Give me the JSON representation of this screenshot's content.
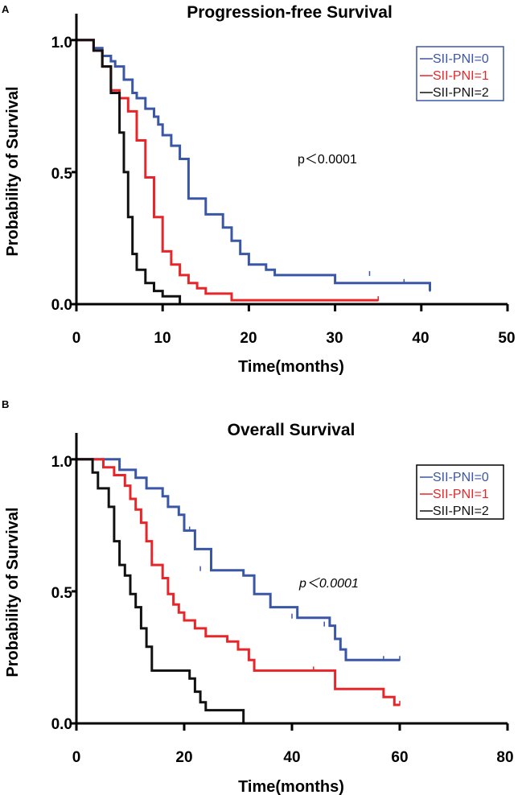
{
  "colors": {
    "group0": "#3a56a6",
    "group1": "#e8262a",
    "group2": "#111111",
    "axis": "#000000"
  },
  "chart_data": [
    {
      "type": "line",
      "panel": "A",
      "title": "Progression-free Survival",
      "xlabel": "Time(months)",
      "ylabel": "Probability of Survival",
      "xlim": [
        0,
        50
      ],
      "ylim": [
        0,
        1.1
      ],
      "x_ticks": [
        0,
        10,
        20,
        30,
        40,
        50
      ],
      "y_ticks": [
        0.0,
        0.5,
        1.0
      ],
      "x_tick_labels": [
        "0",
        "10",
        "20",
        "30",
        "40",
        "50"
      ],
      "y_tick_labels": [
        "0.0",
        "0.5",
        "1.0"
      ],
      "annotation": "p＜0.0001",
      "legend": [
        "SII-PNI=0",
        "SII-PNI=1",
        "SII-PNI=2"
      ],
      "series": [
        {
          "name": "SII-PNI=0",
          "color_key": "group0",
          "x": [
            0,
            2,
            3,
            4,
            4.5,
            5.5,
            6.5,
            7,
            8,
            9,
            9.5,
            10,
            11,
            12,
            13,
            15,
            17,
            18,
            19,
            20,
            22,
            23,
            30,
            41
          ],
          "y": [
            1.0,
            0.97,
            0.94,
            0.92,
            0.9,
            0.85,
            0.8,
            0.78,
            0.74,
            0.71,
            0.68,
            0.64,
            0.6,
            0.55,
            0.4,
            0.34,
            0.29,
            0.24,
            0.19,
            0.15,
            0.13,
            0.11,
            0.08,
            0.05
          ],
          "censored": [
            [
              23,
              0.11
            ],
            [
              34,
              0.11
            ],
            [
              38,
              0.08
            ],
            [
              41,
              0.05
            ]
          ]
        },
        {
          "name": "SII-PNI=1",
          "color_key": "group1",
          "x": [
            0,
            2,
            3,
            4,
            5,
            6,
            7,
            8,
            9,
            10,
            11,
            12,
            13,
            14,
            15,
            18,
            35
          ],
          "y": [
            1.0,
            0.96,
            0.9,
            0.81,
            0.78,
            0.73,
            0.62,
            0.48,
            0.33,
            0.2,
            0.15,
            0.11,
            0.08,
            0.06,
            0.04,
            0.015,
            0.015
          ],
          "censored": [
            [
              35,
              0.015
            ]
          ]
        },
        {
          "name": "SII-PNI=2",
          "color_key": "group2",
          "x": [
            0,
            2,
            3,
            4,
            5,
            5.5,
            6,
            6.5,
            7,
            8,
            9,
            10,
            12
          ],
          "y": [
            1.0,
            0.96,
            0.9,
            0.8,
            0.65,
            0.5,
            0.33,
            0.19,
            0.13,
            0.08,
            0.05,
            0.03,
            0.0
          ],
          "censored": []
        }
      ]
    },
    {
      "type": "line",
      "panel": "B",
      "title": "Overall Survival",
      "xlabel": "Time(months)",
      "ylabel": "Probability of Survival",
      "xlim": [
        0,
        80
      ],
      "ylim": [
        0,
        1.1
      ],
      "x_ticks": [
        0,
        20,
        40,
        60,
        80
      ],
      "y_ticks": [
        0.0,
        0.5,
        1.0
      ],
      "x_tick_labels": [
        "0",
        "20",
        "40",
        "60",
        "80"
      ],
      "y_tick_labels": [
        "0.0",
        "0.5",
        "1.0"
      ],
      "annotation": "p＜0.0001",
      "legend": [
        "SII-PNI=0",
        "SII-PNI=1",
        "SII-PNI=2"
      ],
      "series": [
        {
          "name": "SII-PNI=0",
          "color_key": "group0",
          "x": [
            0,
            8,
            11,
            13,
            16,
            17,
            19,
            20,
            22,
            25,
            31,
            33,
            36,
            41,
            47,
            48,
            49,
            50,
            60
          ],
          "y": [
            1.0,
            0.96,
            0.93,
            0.89,
            0.86,
            0.82,
            0.79,
            0.73,
            0.66,
            0.58,
            0.56,
            0.49,
            0.44,
            0.4,
            0.37,
            0.32,
            0.28,
            0.24,
            0.24
          ],
          "censored": [
            [
              21,
              0.73
            ],
            [
              23,
              0.58
            ],
            [
              25,
              0.58
            ],
            [
              40,
              0.4
            ],
            [
              46,
              0.37
            ],
            [
              57,
              0.24
            ],
            [
              60,
              0.24
            ]
          ]
        },
        {
          "name": "SII-PNI=1",
          "color_key": "group1",
          "x": [
            0,
            5,
            7,
            9,
            10,
            11,
            12,
            13,
            14,
            16,
            17,
            18,
            19,
            20,
            22,
            24,
            28,
            30,
            32,
            33,
            48,
            57,
            59,
            60
          ],
          "y": [
            1.0,
            0.97,
            0.94,
            0.9,
            0.85,
            0.81,
            0.76,
            0.69,
            0.6,
            0.55,
            0.49,
            0.45,
            0.42,
            0.39,
            0.36,
            0.33,
            0.31,
            0.28,
            0.24,
            0.2,
            0.13,
            0.1,
            0.07,
            0.07
          ],
          "censored": [
            [
              44,
              0.2
            ],
            [
              60,
              0.07
            ]
          ]
        },
        {
          "name": "SII-PNI=2",
          "color_key": "group2",
          "x": [
            0,
            3,
            4,
            6,
            7,
            8,
            9,
            10,
            11,
            12,
            13,
            14,
            21,
            22,
            23,
            24,
            31
          ],
          "y": [
            1.0,
            0.95,
            0.89,
            0.82,
            0.69,
            0.6,
            0.56,
            0.49,
            0.44,
            0.36,
            0.29,
            0.2,
            0.17,
            0.12,
            0.08,
            0.05,
            0.0
          ],
          "censored": []
        }
      ]
    }
  ]
}
